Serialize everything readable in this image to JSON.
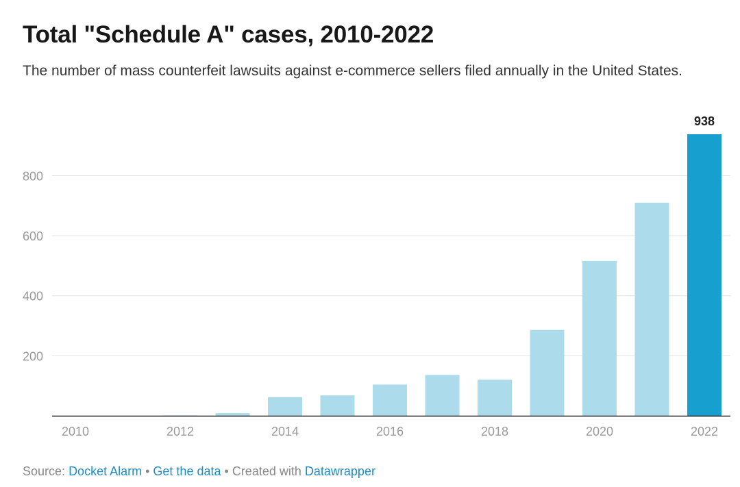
{
  "title": "Total \"Schedule A\" cases, 2010-2022",
  "subtitle": "The number of mass counterfeit lawsuits against e-commerce sellers filed annually in the United States.",
  "colors": {
    "bar": "#acdcec",
    "highlight": "#17a0cf",
    "grid": "#e2e2e2",
    "axis": "#222222",
    "tick_label": "#9a9a9a",
    "value_label": "#222222",
    "link": "#1d8dc6"
  },
  "chart_data": {
    "type": "bar",
    "title": "Total \"Schedule A\" cases, 2010-2022",
    "subtitle": "The number of mass counterfeit lawsuits against e-commerce sellers filed annually in the United States.",
    "xlabel": "",
    "ylabel": "",
    "categories": [
      "2010",
      "2011",
      "2012",
      "2013",
      "2014",
      "2015",
      "2016",
      "2017",
      "2018",
      "2019",
      "2020",
      "2021",
      "2022"
    ],
    "values": [
      0,
      0,
      1,
      9,
      62,
      68,
      104,
      136,
      120,
      286,
      516,
      710,
      938
    ],
    "highlight_index": 12,
    "value_labels": [
      {
        "index": 12,
        "text": "938"
      }
    ],
    "x_tick_labels": [
      "2010",
      "2012",
      "2014",
      "2016",
      "2018",
      "2020",
      "2022"
    ],
    "y_ticks": [
      200,
      400,
      600,
      800
    ],
    "y_tick_labels": [
      "200",
      "400",
      "600",
      "800"
    ],
    "ylim": [
      0,
      938
    ],
    "grid": true,
    "legend": "none"
  },
  "footer": {
    "source_prefix": "Source:",
    "source_link": "Docket Alarm",
    "separator": "•",
    "get_data": "Get the data",
    "created_with": "Created with",
    "tool": "Datawrapper"
  }
}
